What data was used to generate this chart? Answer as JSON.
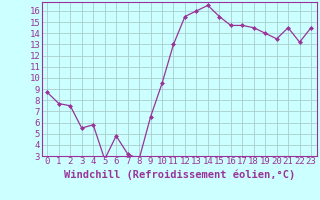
{
  "x": [
    0,
    1,
    2,
    3,
    4,
    5,
    6,
    7,
    8,
    9,
    10,
    11,
    12,
    13,
    14,
    15,
    16,
    17,
    18,
    19,
    20,
    21,
    22,
    23
  ],
  "y": [
    8.7,
    7.7,
    7.5,
    5.5,
    5.8,
    2.7,
    4.8,
    3.2,
    2.7,
    6.5,
    9.5,
    13.0,
    15.5,
    16.0,
    16.5,
    15.5,
    14.7,
    14.7,
    14.5,
    14.0,
    13.5,
    14.5,
    13.2,
    14.5
  ],
  "line_color": "#993399",
  "marker": "D",
  "marker_size": 2,
  "bg_color": "#ccffff",
  "grid_color": "#aacccc",
  "xlabel": "Windchill (Refroidissement éolien,°C)",
  "xlabel_color": "#993399",
  "ylim": [
    3,
    16.8
  ],
  "yticks": [
    3,
    4,
    5,
    6,
    7,
    8,
    9,
    10,
    11,
    12,
    13,
    14,
    15,
    16
  ],
  "xticks": [
    0,
    1,
    2,
    3,
    4,
    5,
    6,
    7,
    8,
    9,
    10,
    11,
    12,
    13,
    14,
    15,
    16,
    17,
    18,
    19,
    20,
    21,
    22,
    23
  ],
  "tick_fontsize": 6.5,
  "xlabel_fontsize": 7.5,
  "spine_color": "#993399"
}
